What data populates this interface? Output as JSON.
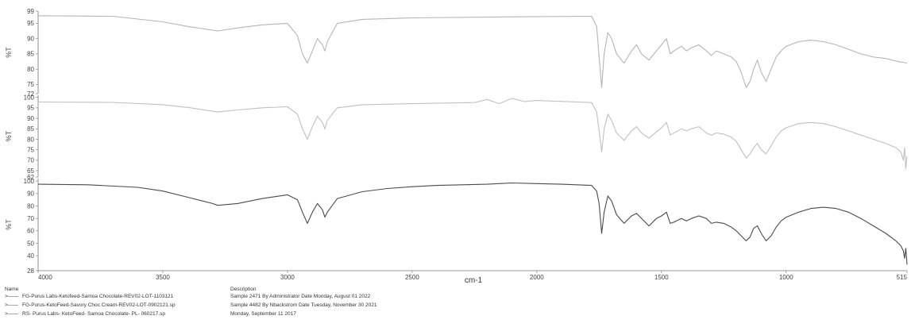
{
  "chart_data": {
    "type": "line",
    "xlabel": "cm-1",
    "xlim": [
      4000,
      515
    ],
    "x_ticks": [
      4000,
      3500,
      3000,
      2500,
      2000,
      1500,
      1000,
      515
    ],
    "panels": [
      {
        "ylabel": "%T",
        "ylim": [
          72,
          99
        ],
        "y_ticks": [
          99,
          95,
          90,
          85,
          80,
          75,
          72
        ],
        "color": "#b5b5b5",
        "x": [
          4000,
          3700,
          3500,
          3400,
          3280,
          3200,
          3100,
          3000,
          2960,
          2940,
          2920,
          2900,
          2880,
          2860,
          2850,
          2840,
          2800,
          2700,
          2500,
          2000,
          1780,
          1760,
          1750,
          1740,
          1730,
          1715,
          1700,
          1680,
          1650,
          1620,
          1600,
          1580,
          1550,
          1520,
          1500,
          1480,
          1465,
          1450,
          1420,
          1400,
          1380,
          1350,
          1320,
          1300,
          1280,
          1250,
          1220,
          1200,
          1180,
          1160,
          1145,
          1130,
          1115,
          1100,
          1080,
          1060,
          1040,
          1020,
          1000,
          950,
          900,
          850,
          800,
          750,
          700,
          650,
          600,
          550,
          515
        ],
        "y": [
          97.5,
          97.3,
          95.5,
          94.0,
          92.5,
          93.5,
          94.5,
          95.0,
          91.0,
          85.0,
          82.0,
          86.0,
          90.0,
          88.0,
          86.0,
          89.0,
          95.0,
          96.3,
          96.8,
          97.2,
          97.3,
          94.0,
          84.0,
          74.0,
          85.0,
          92.0,
          90.0,
          85.0,
          82.0,
          86.0,
          88.0,
          85.0,
          83.0,
          86.0,
          88.0,
          90.0,
          85.0,
          86.0,
          87.5,
          86.0,
          87.0,
          88.0,
          86.0,
          84.5,
          86.0,
          85.0,
          84.0,
          82.5,
          79.0,
          74.0,
          76.0,
          80.0,
          83.0,
          79.0,
          76.0,
          80.0,
          84.0,
          86.0,
          87.5,
          89.0,
          89.5,
          89.0,
          88.0,
          86.5,
          85.0,
          84.0,
          83.5,
          82.5,
          82.0
        ]
      },
      {
        "ylabel": "%T",
        "ylim": [
          62,
          101
        ],
        "y_ticks": [
          100,
          95,
          90,
          85,
          80,
          75,
          70,
          65,
          62
        ],
        "color": "#c0c0c0",
        "x": [
          4000,
          3700,
          3500,
          3400,
          3280,
          3200,
          3100,
          3000,
          2960,
          2940,
          2920,
          2900,
          2880,
          2860,
          2850,
          2840,
          2800,
          2700,
          2500,
          2250,
          2200,
          2150,
          2100,
          2050,
          2000,
          1780,
          1760,
          1750,
          1740,
          1730,
          1715,
          1700,
          1680,
          1650,
          1620,
          1600,
          1580,
          1550,
          1520,
          1500,
          1480,
          1465,
          1450,
          1420,
          1400,
          1380,
          1350,
          1320,
          1300,
          1280,
          1250,
          1220,
          1200,
          1180,
          1160,
          1145,
          1130,
          1115,
          1100,
          1080,
          1060,
          1040,
          1020,
          1000,
          950,
          900,
          850,
          800,
          750,
          700,
          650,
          600,
          560,
          540,
          530,
          525,
          520,
          515
        ],
        "y": [
          97.8,
          97.6,
          96.5,
          95.2,
          93.0,
          94.0,
          95.0,
          95.5,
          92.0,
          85.0,
          80.0,
          86.0,
          91.0,
          88.0,
          85.0,
          89.0,
          95.0,
          96.5,
          97.0,
          97.5,
          99.0,
          97.0,
          99.5,
          98.0,
          98.5,
          97.5,
          93.0,
          84.0,
          74.0,
          85.0,
          92.0,
          89.0,
          83.0,
          79.5,
          84.0,
          86.0,
          83.0,
          80.5,
          83.5,
          85.5,
          88.0,
          82.0,
          83.0,
          85.0,
          84.0,
          85.0,
          86.0,
          83.0,
          82.0,
          83.0,
          82.5,
          81.0,
          79.0,
          75.0,
          71.0,
          73.0,
          76.0,
          78.0,
          75.0,
          73.0,
          77.0,
          81.0,
          84.0,
          85.5,
          87.5,
          88.0,
          87.5,
          86.0,
          84.0,
          82.0,
          80.0,
          78.0,
          76.0,
          74.0,
          70.0,
          76.0,
          66.0,
          72.0
        ]
      },
      {
        "ylabel": "%T",
        "ylim": [
          28,
          102
        ],
        "y_ticks": [
          100,
          90,
          80,
          70,
          60,
          50,
          40,
          28
        ],
        "color": "#4a4a4a",
        "x": [
          4000,
          3800,
          3600,
          3500,
          3400,
          3300,
          3280,
          3200,
          3100,
          3000,
          2960,
          2940,
          2920,
          2900,
          2880,
          2860,
          2850,
          2840,
          2800,
          2700,
          2600,
          2500,
          2400,
          2200,
          2100,
          2000,
          1900,
          1780,
          1760,
          1750,
          1740,
          1730,
          1715,
          1700,
          1680,
          1650,
          1620,
          1600,
          1580,
          1550,
          1520,
          1500,
          1480,
          1465,
          1450,
          1420,
          1400,
          1380,
          1350,
          1320,
          1300,
          1280,
          1250,
          1220,
          1200,
          1180,
          1160,
          1145,
          1130,
          1115,
          1100,
          1080,
          1060,
          1040,
          1020,
          1000,
          950,
          900,
          850,
          800,
          750,
          700,
          650,
          600,
          560,
          540,
          530,
          525,
          520,
          515
        ],
        "y": [
          97.5,
          97.0,
          95.0,
          92.0,
          87.0,
          82.0,
          80.5,
          82.0,
          86.0,
          89.0,
          85.0,
          75.0,
          66.0,
          75.0,
          82.0,
          77.0,
          71.0,
          75.0,
          86.0,
          91.5,
          94.0,
          95.5,
          96.5,
          97.5,
          98.5,
          98.0,
          97.5,
          96.5,
          92.0,
          82.0,
          58.0,
          75.0,
          88.0,
          84.0,
          73.0,
          66.0,
          72.0,
          74.0,
          70.0,
          64.0,
          70.0,
          72.0,
          75.0,
          66.0,
          67.0,
          70.0,
          68.0,
          70.0,
          72.0,
          70.0,
          66.0,
          67.0,
          66.0,
          63.0,
          60.0,
          56.0,
          52.0,
          55.0,
          62.0,
          64.0,
          58.0,
          52.0,
          56.0,
          63.0,
          68.0,
          71.0,
          75.0,
          78.0,
          79.0,
          78.0,
          75.0,
          70.0,
          64.0,
          58.0,
          52.0,
          48.0,
          44.0,
          38.0,
          46.0,
          33.0
        ]
      }
    ]
  },
  "legend": {
    "name_header": "Name",
    "desc_header": "Description",
    "rows": [
      {
        "name": "FG-Purus Labs-Ketofeed-Samoa Chocolate-REV02-LOT-1103121",
        "description": "Sample 2471 By Administrator Date Monday, August 01 2022"
      },
      {
        "name": "FG-Purus-KetoFeed-Savory Choc Cream-REV02-LOT-0902121.sp",
        "description": "Sample 4482 By Nbackstrom Date Tuesday, November 30 2021"
      },
      {
        "name": "RS- Purus Labs- KetoFeed- Samoa Chocolate- PL- 060217.sp",
        "description": "Monday, September 11 2017"
      }
    ]
  }
}
